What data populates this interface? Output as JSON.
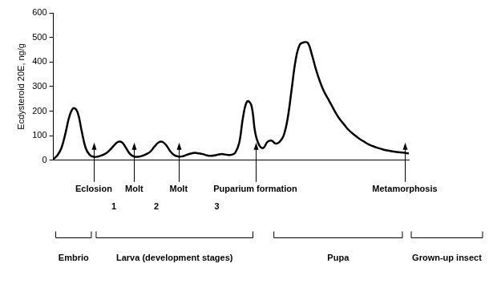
{
  "chart_data": {
    "type": "line",
    "y_label": "Ecdysteroid 20E, ng/g",
    "categories": [
      null,
      null,
      null,
      null,
      null,
      null,
      null,
      null,
      null,
      null,
      "Eclosion",
      null,
      null,
      null,
      null,
      null,
      null,
      null,
      null,
      null,
      "Molt",
      null,
      null,
      null,
      null,
      null,
      null,
      null,
      null,
      null,
      null,
      "Molt",
      null,
      null,
      null,
      null,
      null,
      null,
      null,
      null,
      null,
      null,
      null,
      null,
      null,
      null,
      null,
      null,
      null,
      null,
      "Puparium formation",
      null,
      null,
      null,
      null,
      null,
      null,
      null,
      null,
      null,
      null,
      null,
      null,
      null,
      null,
      null,
      null,
      null,
      null,
      null,
      null,
      null,
      null,
      null,
      null,
      null,
      null,
      null,
      null,
      null,
      null,
      null,
      null,
      null,
      null,
      null,
      null,
      "Metamorphosis",
      null
    ],
    "values": [
      5,
      20,
      50,
      110,
      180,
      212,
      195,
      120,
      50,
      22,
      14,
      15,
      20,
      28,
      42,
      60,
      75,
      73,
      50,
      25,
      15,
      14,
      18,
      25,
      35,
      55,
      72,
      75,
      60,
      35,
      20,
      15,
      16,
      22,
      27,
      30,
      28,
      25,
      20,
      18,
      20,
      24,
      25,
      22,
      22,
      30,
      70,
      180,
      240,
      225,
      110,
      60,
      50,
      75,
      80,
      68,
      75,
      100,
      170,
      290,
      410,
      470,
      480,
      478,
      430,
      370,
      320,
      280,
      250,
      220,
      190,
      165,
      145,
      125,
      110,
      97,
      85,
      75,
      65,
      58,
      52,
      47,
      42,
      39,
      36,
      34,
      32,
      30,
      28
    ],
    "color": "#000000",
    "ylim": [
      0,
      600
    ],
    "yticks": [
      0,
      100,
      200,
      300,
      400,
      500,
      600
    ],
    "grid": false,
    "stages": [
      {
        "label": "1",
        "from": 10,
        "to": 20
      },
      {
        "label": "2",
        "from": 20,
        "to": 31
      },
      {
        "label": "3",
        "from": 31,
        "to": 50
      }
    ],
    "phases": [
      {
        "label": "Embrio",
        "from": 0,
        "to": 10
      },
      {
        "label": "Larva (development stages)",
        "from": 10,
        "to": 50
      },
      {
        "label": "Pupa",
        "from": 54,
        "to": 87
      },
      {
        "label": "Grown-up insect",
        "from": 88,
        "to": null
      }
    ]
  }
}
